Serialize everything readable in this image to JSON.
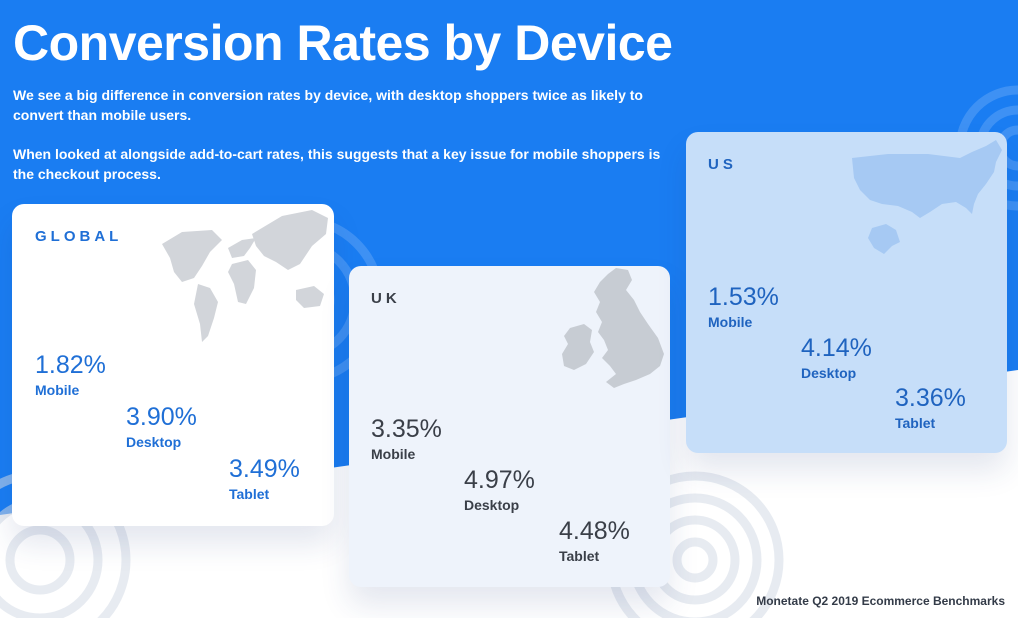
{
  "header": {
    "title": "Conversion Rates by Device",
    "paragraph_1": "We see a big difference in conversion rates by device, with desktop shoppers twice as likely to convert than mobile users.",
    "paragraph_2": "When looked at alongside add-to-cart rates, this suggests that a key issue for mobile shoppers is the checkout process."
  },
  "colors": {
    "banner_blue": "#1a7df2",
    "global_text": "#1f6fd6",
    "uk_text": "#3a3f48",
    "us_text": "#1f63bf"
  },
  "regions": [
    {
      "label": "GLOBAL",
      "map_icon": "world-map-icon",
      "stats": [
        {
          "value": "1.82%",
          "device": "Mobile"
        },
        {
          "value": "3.90%",
          "device": "Desktop"
        },
        {
          "value": "3.49%",
          "device": "Tablet"
        }
      ]
    },
    {
      "label": "UK",
      "map_icon": "uk-map-icon",
      "stats": [
        {
          "value": "3.35%",
          "device": "Mobile"
        },
        {
          "value": "4.97%",
          "device": "Desktop"
        },
        {
          "value": "4.48%",
          "device": "Tablet"
        }
      ]
    },
    {
      "label": "US",
      "map_icon": "us-map-icon",
      "stats": [
        {
          "value": "1.53%",
          "device": "Mobile"
        },
        {
          "value": "4.14%",
          "device": "Desktop"
        },
        {
          "value": "3.36%",
          "device": "Tablet"
        }
      ]
    }
  ],
  "footer": {
    "source": "Monetate Q2 2019 Ecommerce Benchmarks"
  }
}
